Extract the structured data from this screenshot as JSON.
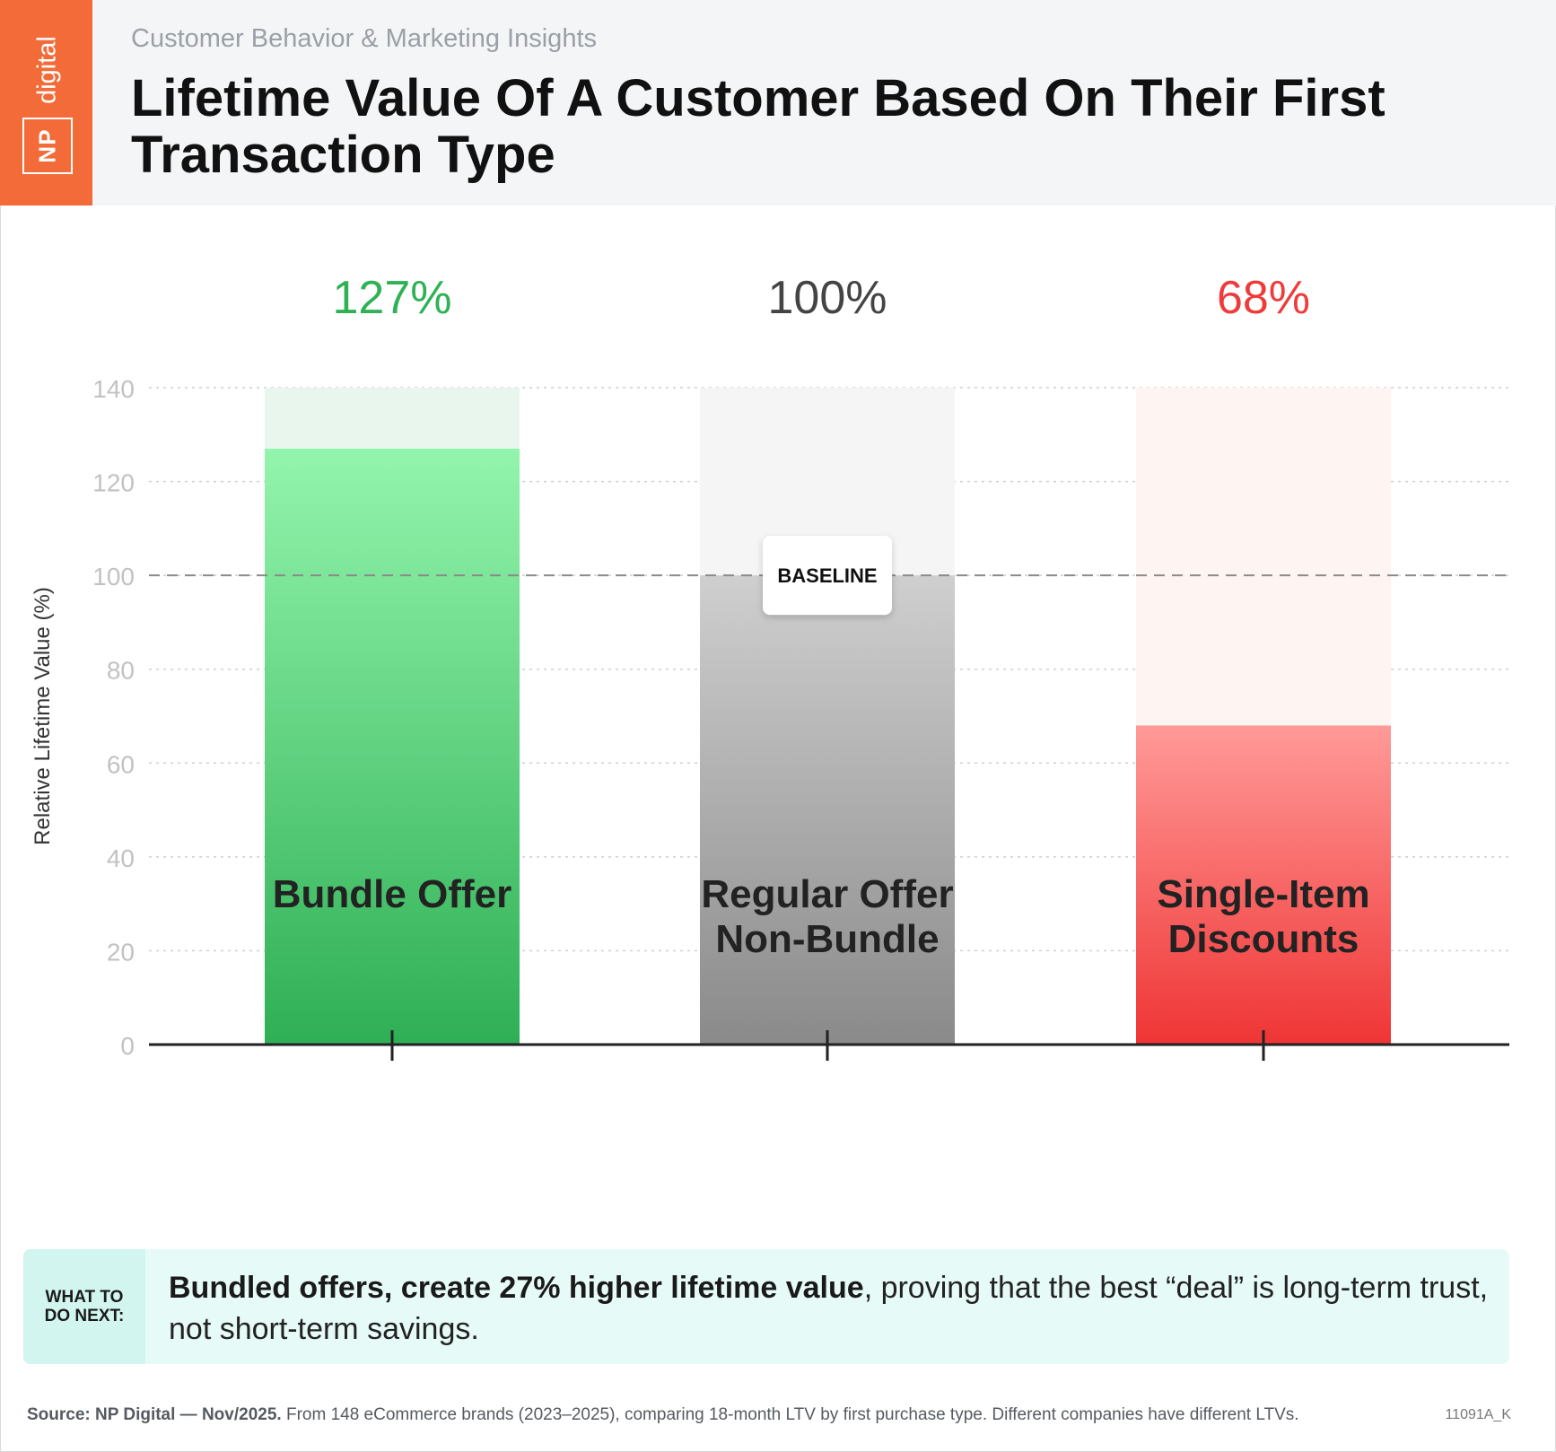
{
  "header": {
    "kicker": "Customer Behavior & Marketing Insights",
    "title": "Lifetime Value Of A Customer Based On Their First Transaction Type",
    "logo_np": "NP",
    "logo_word": "digital"
  },
  "colors": {
    "brand": "#f26b38",
    "bundle": "#2fb155",
    "regular": "#444444",
    "single": "#ee3b3b"
  },
  "chart_data": {
    "type": "bar",
    "categories": [
      "Bundle Offer",
      "Regular Offer\nNon-Bundle",
      "Single-Item\nDiscounts"
    ],
    "values": [
      127,
      100,
      68
    ],
    "value_labels": [
      "127%",
      "100%",
      "68%"
    ],
    "ylabel": "Relative Lifetime Value (%)",
    "ylim": [
      0,
      140
    ],
    "yticks": [
      0,
      20,
      40,
      60,
      80,
      100,
      120,
      140
    ],
    "grid": true,
    "reference_line": {
      "value": 100,
      "label": "BASELINE"
    }
  },
  "tip": {
    "tag_line1": "WHAT TO",
    "tag_line2": "DO NEXT:",
    "bold": "Bundled offers, create 27% higher lifetime value",
    "rest": ", proving that the best “deal” is long-term trust, not short-term savings."
  },
  "footer": {
    "source_bold": "Source: NP Digital — Nov/2025.",
    "source_rest": " From 148 eCommerce brands (2023–2025), comparing 18-month LTV by first purchase type. Different companies have different LTVs.",
    "code": "11091A_K"
  }
}
